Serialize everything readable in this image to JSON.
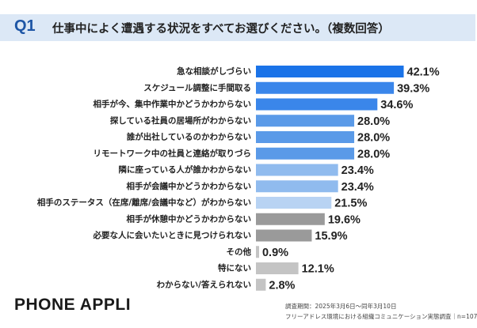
{
  "header": {
    "question_number": "Q1",
    "question_text": "仕事中によく遭遇する状況をすべてお選びください。（複数回答）"
  },
  "chart_data": {
    "type": "bar",
    "orientation": "horizontal",
    "unit": "%",
    "xlim": [
      0,
      50
    ],
    "categories": [
      "急な相談がしづらい",
      "スケジュール調整に手間取る",
      "相手が今、集中作業中かどうかわからない",
      "探している社員の居場所がわからない",
      "誰が出社しているのかわからない",
      "リモートワーク中の社員と連絡が取りづら",
      "隣に座っている人が誰かわからない",
      "相手が会議中かどうかわからない",
      "相手のステータス（在席/離席/会議中など）がわからない",
      "相手が休憩中かどうかわからない",
      "必要な人に会いたいときに見つけられない",
      "その他",
      "特にない",
      "わからない/答えられない"
    ],
    "values": [
      42.1,
      39.3,
      34.6,
      28.0,
      28.0,
      28.0,
      23.4,
      23.4,
      21.5,
      19.6,
      15.9,
      0.9,
      12.1,
      2.8
    ],
    "value_labels": [
      "42.1%",
      "39.3%",
      "34.6%",
      "28.0%",
      "28.0%",
      "28.0%",
      "23.4%",
      "23.4%",
      "21.5%",
      "19.6%",
      "15.9%",
      "0.9%",
      "12.1%",
      "2.8%"
    ],
    "colors": [
      "#1a73e8",
      "#3a86ea",
      "#3a86ea",
      "#5a9ae8",
      "#5a9ae8",
      "#5a9ae8",
      "#90bbee",
      "#90bbee",
      "#b8d3f3",
      "#9a9a9a",
      "#9a9a9a",
      "#c4c4c4",
      "#c4c4c4",
      "#c4c4c4"
    ],
    "title": "",
    "xlabel": "",
    "ylabel": ""
  },
  "footer": {
    "brand": "PHONE APPLI",
    "survey_period": "調査期間：2025年3月6日～同年3月10日",
    "survey_name": "フリーアドレス環境における組織コミュニケーション実態調査｜n=107"
  }
}
